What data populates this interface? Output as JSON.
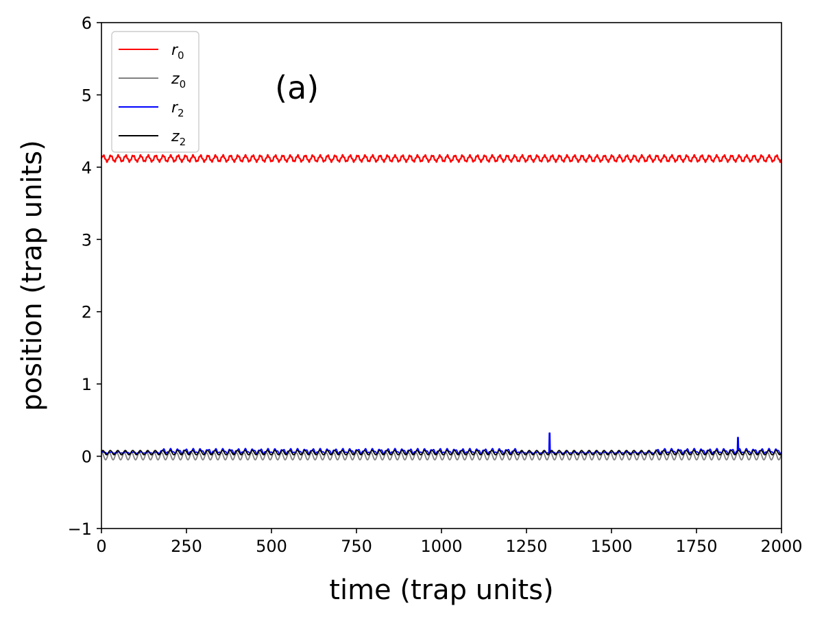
{
  "chart_data": {
    "type": "line",
    "title": "",
    "xlabel": "time (trap units)",
    "ylabel": "position (trap units)",
    "xlim": [
      0,
      2000
    ],
    "ylim": [
      -1,
      6
    ],
    "xticks": [
      0,
      250,
      500,
      750,
      1000,
      1250,
      1500,
      1750,
      2000
    ],
    "xtick_labels": [
      "0",
      "250",
      "500",
      "750",
      "1000",
      "1250",
      "1500",
      "1750",
      "2000"
    ],
    "yticks": [
      -1,
      0,
      1,
      2,
      3,
      4,
      5,
      6
    ],
    "ytick_labels": [
      "−1",
      "0",
      "1",
      "2",
      "3",
      "4",
      "5",
      "6"
    ],
    "grid": false,
    "legend_position": "top-left",
    "annotation": {
      "text": "(a)",
      "x": 575,
      "y": 5.1
    },
    "series": [
      {
        "key": "r0",
        "name": "r",
        "subscript": "0",
        "color": "#ff0000",
        "baseline": 4.12,
        "amplitude": 0.04,
        "period": 22,
        "x": [
          0,
          250,
          500,
          750,
          1000,
          1250,
          1500,
          1750,
          2000
        ],
        "values": [
          4.12,
          4.12,
          4.12,
          4.12,
          4.12,
          4.12,
          4.12,
          4.12,
          4.12
        ]
      },
      {
        "key": "z0",
        "name": "z",
        "subscript": "0",
        "color": "#808080",
        "baseline": 0.0,
        "amplitude": 0.05,
        "period": 22,
        "x": [
          0,
          250,
          500,
          750,
          1000,
          1250,
          1500,
          1750,
          2000
        ],
        "values": [
          0.0,
          0.0,
          0.0,
          0.0,
          0.0,
          0.0,
          0.0,
          0.0,
          0.0
        ]
      },
      {
        "key": "r2",
        "name": "r",
        "subscript": "2",
        "color": "#0000ff",
        "baseline": 0.08,
        "amplitude": 0.05,
        "period": 22,
        "spikes": [
          {
            "x": 1318,
            "y": 0.32
          },
          {
            "x": 1872,
            "y": 0.26
          }
        ],
        "x": [
          0,
          250,
          500,
          750,
          1000,
          1250,
          1500,
          1750,
          2000
        ],
        "values": [
          0.07,
          0.1,
          0.1,
          0.1,
          0.1,
          0.09,
          0.04,
          0.1,
          0.1
        ]
      },
      {
        "key": "z2",
        "name": "z",
        "subscript": "2",
        "color": "#000000",
        "baseline": 0.05,
        "amplitude": 0.03,
        "period": 22,
        "x": [
          0,
          250,
          500,
          750,
          1000,
          1250,
          1500,
          1750,
          2000
        ],
        "values": [
          0.05,
          0.05,
          0.05,
          0.05,
          0.05,
          0.05,
          0.05,
          0.05,
          0.05
        ]
      }
    ]
  }
}
